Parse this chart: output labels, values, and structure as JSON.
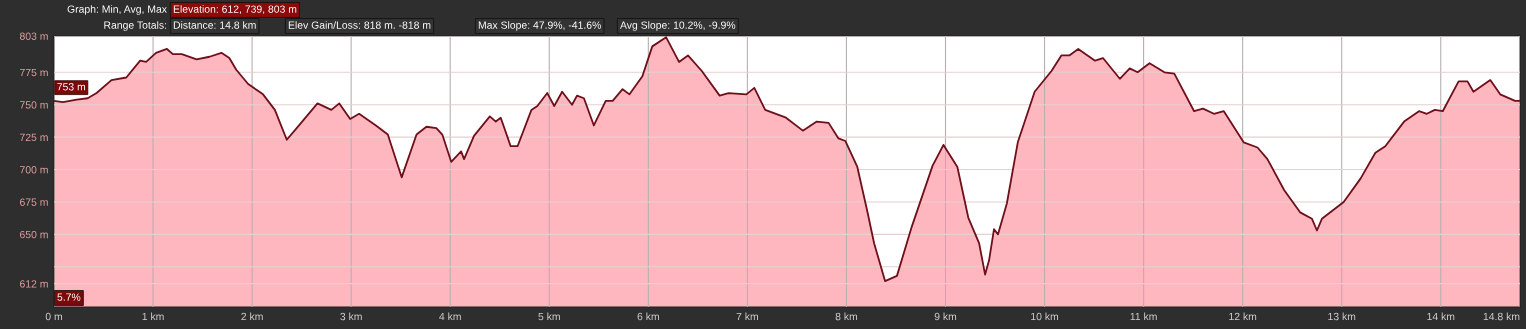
{
  "chart_data": {
    "type": "area",
    "x": [
      0,
      0.09,
      0.23,
      0.34,
      0.43,
      0.58,
      0.73,
      0.87,
      0.93,
      1.03,
      1.14,
      1.2,
      1.29,
      1.44,
      1.57,
      1.69,
      1.77,
      1.84,
      1.96,
      2.11,
      2.23,
      2.35,
      2.45,
      2.66,
      2.8,
      2.88,
      2.99,
      3.08,
      3.25,
      3.37,
      3.51,
      3.66,
      3.76,
      3.86,
      3.92,
      4.01,
      4.11,
      4.14,
      4.24,
      4.4,
      4.46,
      4.51,
      4.61,
      4.68,
      4.82,
      4.88,
      4.98,
      5.05,
      5.13,
      5.23,
      5.28,
      5.35,
      5.45,
      5.57,
      5.64,
      5.74,
      5.81,
      5.94,
      6.04,
      6.18,
      6.31,
      6.4,
      6.54,
      6.72,
      6.81,
      6.99,
      7.07,
      7.18,
      7.39,
      7.56,
      7.7,
      7.82,
      7.92,
      7.99,
      8.11,
      8.21,
      8.28,
      8.39,
      8.51,
      8.66,
      8.87,
      8.98,
      9.12,
      9.23,
      9.34,
      9.4,
      9.44,
      9.49,
      9.53,
      9.62,
      9.73,
      9.8,
      9.9,
      10.07,
      10.17,
      10.25,
      10.34,
      10.51,
      10.59,
      10.76,
      10.86,
      10.94,
      11.06,
      11.21,
      11.31,
      11.51,
      11.6,
      11.71,
      11.81,
      12.01,
      12.15,
      12.25,
      12.42,
      12.58,
      12.7,
      12.75,
      12.8,
      13.02,
      13.19,
      13.34,
      13.44,
      13.63,
      13.78,
      13.86,
      13.94,
      14.02,
      14.18,
      14.27,
      14.33,
      14.5,
      14.6,
      14.75,
      14.8
    ],
    "series": [
      {
        "color": "#6e0f1a",
        "values": [
          753,
          752,
          754,
          755,
          759,
          769,
          771,
          784,
          783,
          790,
          793,
          789,
          789,
          785,
          787,
          790,
          786,
          777,
          766,
          758,
          746,
          723,
          732,
          751,
          746,
          751,
          739,
          743,
          734,
          727,
          694,
          727,
          733,
          732,
          727,
          706,
          714,
          708,
          726,
          741,
          737,
          740,
          718,
          718,
          746,
          749,
          759,
          749,
          760,
          750,
          757,
          755,
          734,
          753,
          753,
          762,
          758,
          772,
          795,
          802,
          783,
          788,
          776,
          757,
          759,
          758,
          763,
          746,
          740,
          730,
          737,
          736,
          724,
          722,
          702,
          668,
          643,
          614,
          618,
          656,
          703,
          719,
          702,
          663,
          643,
          619,
          630,
          654,
          650,
          674,
          721,
          737,
          760,
          776,
          788,
          788,
          793,
          784,
          786,
          770,
          778,
          775,
          782,
          775,
          774,
          745,
          747,
          743,
          745,
          721,
          717,
          708,
          684,
          667,
          662,
          653,
          662,
          675,
          693,
          713,
          718,
          737,
          745,
          743,
          746,
          745,
          768,
          768,
          760,
          769,
          758,
          753,
          753
        ]
      }
    ],
    "xlim": [
      0,
      14.8
    ],
    "ylim": [
      594,
      803
    ],
    "xticks": [
      {
        "value": 0,
        "label": "0 m"
      },
      {
        "value": 1,
        "label": "1 km"
      },
      {
        "value": 2,
        "label": "2 km"
      },
      {
        "value": 3,
        "label": "3 km"
      },
      {
        "value": 4,
        "label": "4 km"
      },
      {
        "value": 5,
        "label": "5 km"
      },
      {
        "value": 6,
        "label": "6 km"
      },
      {
        "value": 7,
        "label": "7 km"
      },
      {
        "value": 8,
        "label": "8 km"
      },
      {
        "value": 9,
        "label": "9 km"
      },
      {
        "value": 10,
        "label": "10 km"
      },
      {
        "value": 11,
        "label": "11 km"
      },
      {
        "value": 12,
        "label": "12 km"
      },
      {
        "value": 13,
        "label": "13 km"
      },
      {
        "value": 14,
        "label": "14 km"
      },
      {
        "value": 14.8,
        "label": "14.8 km"
      }
    ],
    "yticks": [
      {
        "value": 612,
        "label": "612 m"
      },
      {
        "value": 625,
        "label": null
      },
      {
        "value": 650,
        "label": "650 m"
      },
      {
        "value": 675,
        "label": "675 m"
      },
      {
        "value": 700,
        "label": "700 m"
      },
      {
        "value": 725,
        "label": "725 m"
      },
      {
        "value": 750,
        "label": "750 m"
      },
      {
        "value": 775,
        "label": "775 m"
      },
      {
        "value": 803,
        "label": "803 m"
      }
    ],
    "grid": true,
    "annotations": [
      "Graph: Min, Avg, Max",
      "Elevation: 612, 739, 803 m",
      "Range Totals:",
      "Distance: 14.8 km",
      "Elev Gain/Loss: 818 m. -818 m",
      "Max Slope: 47.9%, -41.6%",
      "Avg Slope: 10.2%, -9.9%",
      {
        "text": "753 m",
        "x": 0,
        "y": 753
      },
      "5.7%"
    ]
  }
}
